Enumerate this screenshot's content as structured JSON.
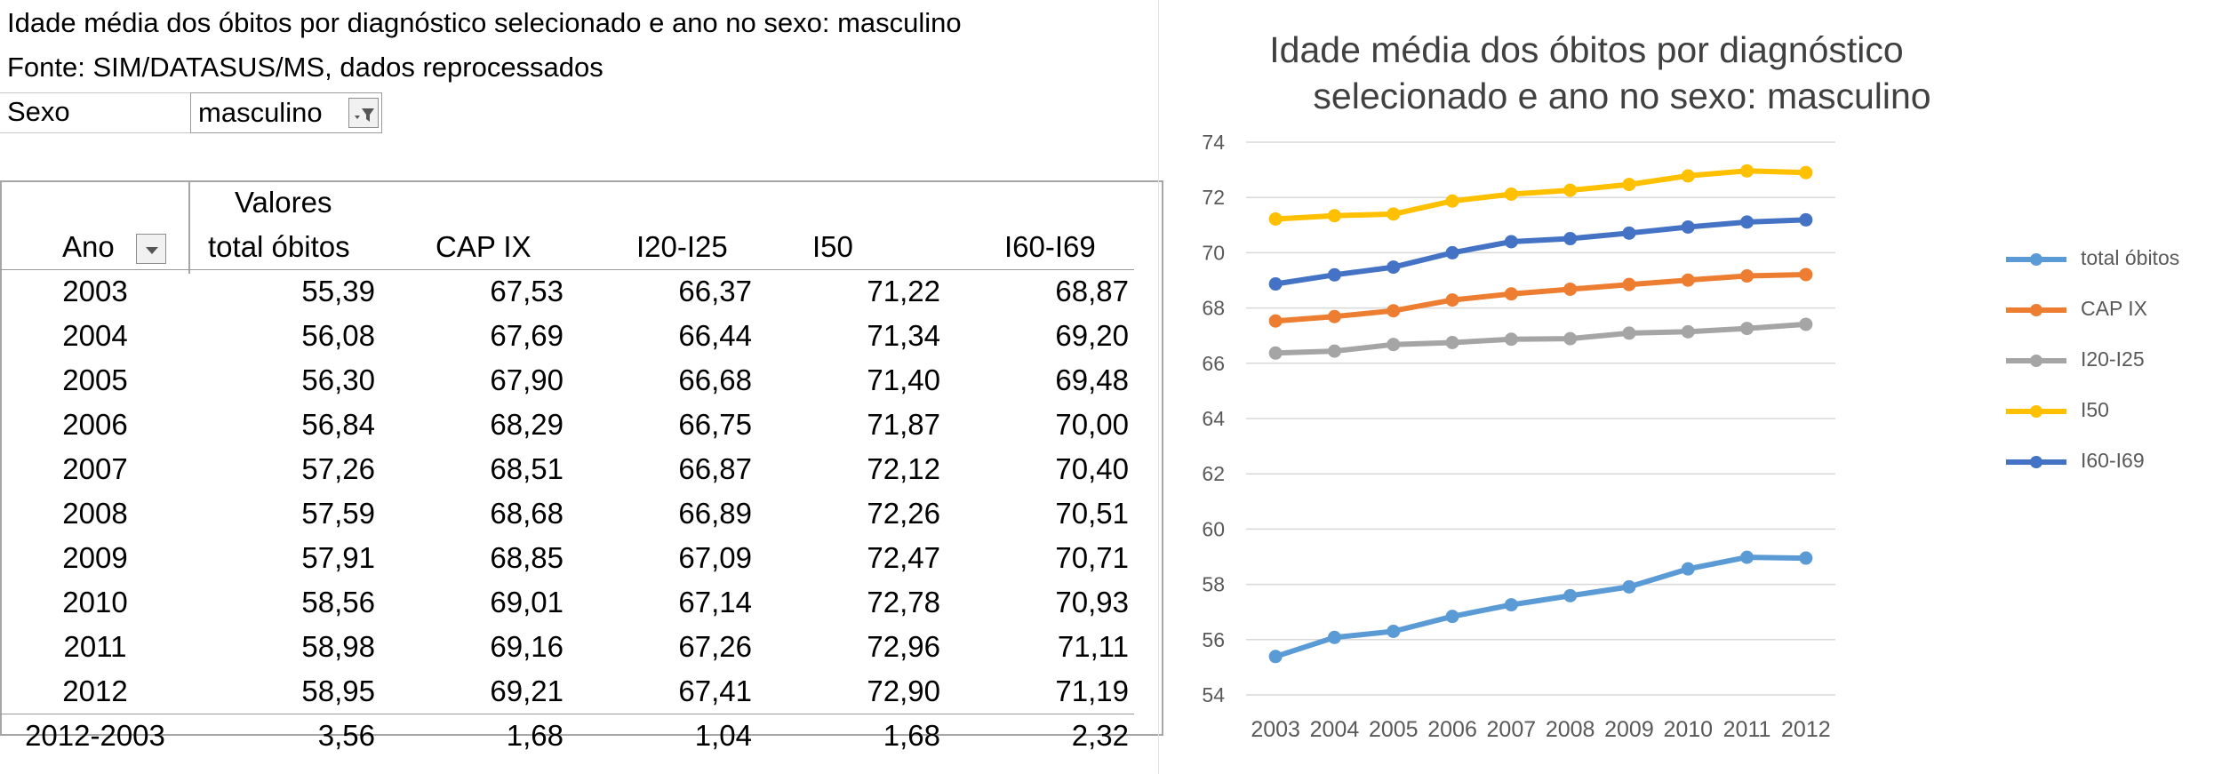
{
  "sheet": {
    "title": "Idade média dos óbitos por diagnóstico selecionado e ano no sexo: masculino",
    "source": "Fonte: SIM/DATASUS/MS, dados reprocessados",
    "filter_label": "Sexo",
    "filter_value": "masculino",
    "values_header": "Valores",
    "row_header": "Ano",
    "columns": [
      "total óbitos",
      "CAP IX",
      "I20-I25",
      "I50",
      "I60-I69"
    ],
    "rows": [
      {
        "year": "2003",
        "values": [
          "55,39",
          "67,53",
          "66,37",
          "71,22",
          "68,87"
        ]
      },
      {
        "year": "2004",
        "values": [
          "56,08",
          "67,69",
          "66,44",
          "71,34",
          "69,20"
        ]
      },
      {
        "year": "2005",
        "values": [
          "56,30",
          "67,90",
          "66,68",
          "71,40",
          "69,48"
        ]
      },
      {
        "year": "2006",
        "values": [
          "56,84",
          "68,29",
          "66,75",
          "71,87",
          "70,00"
        ]
      },
      {
        "year": "2007",
        "values": [
          "57,26",
          "68,51",
          "66,87",
          "72,12",
          "70,40"
        ]
      },
      {
        "year": "2008",
        "values": [
          "57,59",
          "68,68",
          "66,89",
          "72,26",
          "70,51"
        ]
      },
      {
        "year": "2009",
        "values": [
          "57,91",
          "68,85",
          "67,09",
          "72,47",
          "70,71"
        ]
      },
      {
        "year": "2010",
        "values": [
          "58,56",
          "69,01",
          "67,14",
          "72,78",
          "70,93"
        ]
      },
      {
        "year": "2011",
        "values": [
          "58,98",
          "69,16",
          "67,26",
          "72,96",
          "71,11"
        ]
      },
      {
        "year": "2012",
        "values": [
          "58,95",
          "69,21",
          "67,41",
          "72,90",
          "71,19"
        ]
      }
    ],
    "diff_row": {
      "label": "2012-2003",
      "values": [
        "3,56",
        "1,68",
        "1,04",
        "1,68",
        "2,32"
      ]
    }
  },
  "chart_data": {
    "type": "line",
    "title_line1": "Idade média dos óbitos por diagnóstico",
    "title_line2": "selecionado e ano no sexo: masculino",
    "categories": [
      "2003",
      "2004",
      "2005",
      "2006",
      "2007",
      "2008",
      "2009",
      "2010",
      "2011",
      "2012"
    ],
    "ylim": [
      54,
      74
    ],
    "yticks": [
      54,
      56,
      58,
      60,
      62,
      64,
      66,
      68,
      70,
      72,
      74
    ],
    "grid": true,
    "legend_position": "right",
    "series": [
      {
        "name": "total óbitos",
        "color": "#5b9bd5",
        "values": [
          55.39,
          56.08,
          56.3,
          56.84,
          57.26,
          57.59,
          57.91,
          58.56,
          58.98,
          58.95
        ]
      },
      {
        "name": "CAP IX",
        "color": "#ed7d31",
        "values": [
          67.53,
          67.69,
          67.9,
          68.29,
          68.51,
          68.68,
          68.85,
          69.01,
          69.16,
          69.21
        ]
      },
      {
        "name": "I20-I25",
        "color": "#a5a5a5",
        "values": [
          66.37,
          66.44,
          66.68,
          66.75,
          66.87,
          66.89,
          67.09,
          67.14,
          67.26,
          67.41
        ]
      },
      {
        "name": "I50",
        "color": "#ffc000",
        "values": [
          71.22,
          71.34,
          71.4,
          71.87,
          72.12,
          72.26,
          72.47,
          72.78,
          72.96,
          72.9
        ]
      },
      {
        "name": "I60-I69",
        "color": "#4472c4",
        "values": [
          68.87,
          69.2,
          69.48,
          70.0,
          70.4,
          70.51,
          70.71,
          70.93,
          71.11,
          71.19
        ]
      }
    ]
  }
}
